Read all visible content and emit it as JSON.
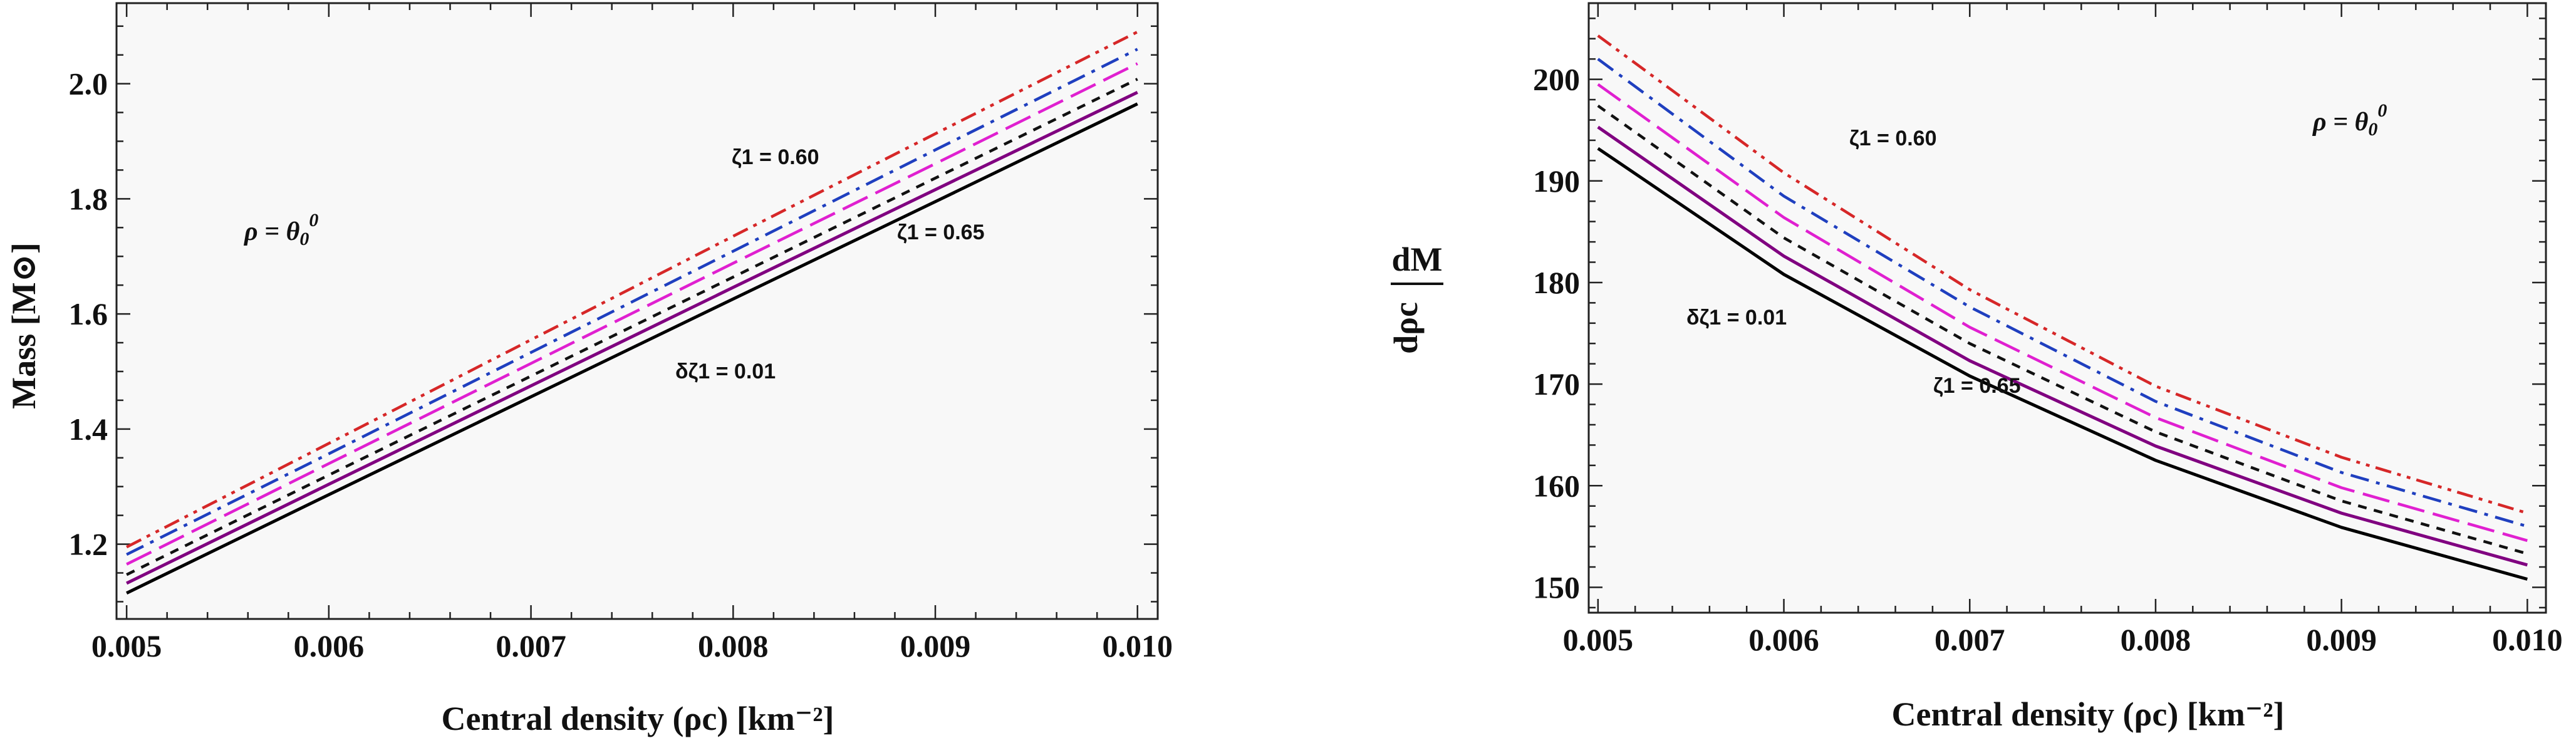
{
  "chart_data": [
    {
      "type": "line",
      "xlabel": "Central density (ρc) [km⁻²]",
      "ylabel": "Mass [M⊙]",
      "xlim": [
        0.00495,
        0.0101
      ],
      "ylim": [
        1.07,
        2.14
      ],
      "xticks": [
        "0.005",
        "0.006",
        "0.007",
        "0.008",
        "0.009",
        "0.010"
      ],
      "yticks": [
        "1.2",
        "1.4",
        "1.6",
        "1.8",
        "2.0"
      ],
      "annotations": [
        "ρ = θ0⁰",
        "ζ1 = 0.60",
        "ζ1 = 0.65",
        "δζ1 = 0.01"
      ],
      "x": [
        0.005,
        0.006,
        0.007,
        0.008,
        0.009,
        0.01
      ],
      "series": [
        {
          "color": "#d62728",
          "dash": "dashdotdot",
          "values": [
            1.195,
            1.375,
            1.555,
            1.735,
            1.913,
            2.09
          ]
        },
        {
          "color": "#1f3fbf",
          "dash": "dashdot",
          "values": [
            1.182,
            1.357,
            1.533,
            1.709,
            1.885,
            2.06
          ]
        },
        {
          "color": "#e020d0",
          "dash": "longdash",
          "values": [
            1.165,
            1.34,
            1.514,
            1.688,
            1.861,
            2.035
          ]
        },
        {
          "color": "#111111",
          "dash": "dashed",
          "values": [
            1.147,
            1.32,
            1.492,
            1.664,
            1.836,
            2.008
          ]
        },
        {
          "color": "#800080",
          "dash": "solid",
          "values": [
            1.132,
            1.304,
            1.475,
            1.646,
            1.816,
            1.985
          ]
        },
        {
          "color": "#000000",
          "dash": "solid",
          "values": [
            1.115,
            1.286,
            1.456,
            1.626,
            1.795,
            1.965
          ]
        }
      ]
    },
    {
      "type": "line",
      "xlabel": "Central density (ρc) [km⁻²]",
      "ylabel": "dM / dρc",
      "xlim": [
        0.00495,
        0.0101
      ],
      "ylim": [
        147.5,
        207.5
      ],
      "xticks": [
        "0.005",
        "0.006",
        "0.007",
        "0.008",
        "0.009",
        "0.010"
      ],
      "yticks": [
        "150",
        "160",
        "170",
        "180",
        "190",
        "200"
      ],
      "annotations": [
        "ρ = θ0⁰",
        "ζ1 = 0.60",
        "δζ1 = 0.01",
        "ζ1 = 0.65"
      ],
      "x": [
        0.005,
        0.006,
        0.007,
        0.008,
        0.009,
        0.01
      ],
      "series": [
        {
          "color": "#d62728",
          "dash": "dashdotdot",
          "values": [
            204.3,
            190.8,
            179.3,
            169.8,
            162.8,
            157.3
          ]
        },
        {
          "color": "#1f3fbf",
          "dash": "dashdot",
          "values": [
            202.0,
            188.5,
            177.6,
            168.3,
            161.3,
            156.0
          ]
        },
        {
          "color": "#e020d0",
          "dash": "longdash",
          "values": [
            199.5,
            186.4,
            175.6,
            166.7,
            159.8,
            154.6
          ]
        },
        {
          "color": "#111111",
          "dash": "dashed",
          "values": [
            197.4,
            184.4,
            174.0,
            165.3,
            158.5,
            153.3
          ]
        },
        {
          "color": "#800080",
          "dash": "solid",
          "values": [
            195.3,
            182.6,
            172.3,
            163.9,
            157.3,
            152.2
          ]
        },
        {
          "color": "#000000",
          "dash": "solid",
          "values": [
            193.2,
            180.8,
            170.8,
            162.5,
            155.9,
            150.8
          ]
        }
      ]
    }
  ],
  "labels": {
    "left": {
      "rho_prefix": "ρ = θ",
      "rho_sub": "0",
      "rho_sup": "0",
      "zeta_top": "ζ1 = 0.60",
      "zeta_bottom": "ζ1 = 0.65",
      "delta": "δζ1 = 0.01",
      "ylabel": "Mass [M⊙]",
      "xlabel": "Central density (ρc) [km⁻²]"
    },
    "right": {
      "rho_prefix": "ρ = θ",
      "rho_sub": "0",
      "rho_sup": "0",
      "zeta_top": "ζ1 = 0.60",
      "zeta_bottom": "ζ1 = 0.65",
      "delta": "δζ1 = 0.01",
      "ylabel_num": "dM",
      "ylabel_den": "dρc",
      "xlabel": "Central density (ρc) [km⁻²]"
    }
  }
}
